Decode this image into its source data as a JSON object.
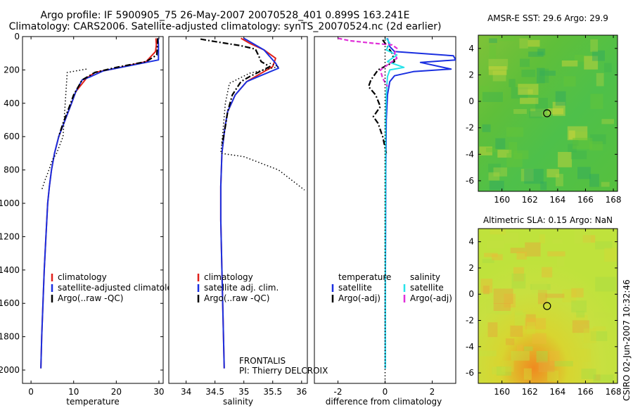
{
  "header": {
    "line1": "Argo profile: IF 5900905_75 26-May-2007 20070528_401 0.899S 163.241E",
    "line2": "Climatology: CARS2006. Satellite-adjusted climatology: synTS_20070524.nc (2d earlier)"
  },
  "colors": {
    "red": "#e0201a",
    "blue": "#1a2fe0",
    "black": "#000000",
    "cyan": "#27e3ea",
    "magenta": "#e030d8"
  },
  "panel_texts": {
    "frontalis": "FRONTALIS",
    "pi": "PI: Thierry DELCROIX",
    "credit": "CSIRO 02-Jun-2007 10:32:46"
  },
  "chart_data": [
    {
      "type": "line",
      "xlabel": "temperature",
      "xlim": [
        -2,
        31
      ],
      "ylim": [
        2080,
        0
      ],
      "xticks": [
        0,
        10,
        20,
        30
      ],
      "yticks": [
        0,
        200,
        400,
        600,
        800,
        1000,
        1200,
        1400,
        1600,
        1800,
        2000
      ],
      "legend": [
        "climatology",
        "satellite-adjusted climatology",
        "Argo(..raw -QC)"
      ],
      "series": [
        {
          "name": "climatology",
          "color": "red",
          "style": "solid",
          "points": [
            [
              29.3,
              10
            ],
            [
              29.4,
              50
            ],
            [
              29.2,
              90
            ],
            [
              27,
              150
            ],
            [
              20,
              190
            ],
            [
              15,
              215
            ],
            [
              13,
              250
            ],
            [
              10.5,
              330
            ],
            [
              9.5,
              400
            ],
            [
              8,
              500
            ],
            [
              6.5,
              600
            ],
            [
              5.5,
              700
            ],
            [
              4.8,
              800
            ],
            [
              4.3,
              900
            ],
            [
              3.9,
              1000
            ],
            [
              3.5,
              1200
            ],
            [
              3.1,
              1400
            ],
            [
              2.8,
              1600
            ],
            [
              2.5,
              1800
            ],
            [
              2.3,
              1990
            ]
          ]
        },
        {
          "name": "satellite-adjusted climatology",
          "color": "blue",
          "style": "solid",
          "points": [
            [
              29.8,
              10
            ],
            [
              29.9,
              50
            ],
            [
              29.9,
              100
            ],
            [
              29.9,
              140
            ],
            [
              24,
              170
            ],
            [
              17,
              205
            ],
            [
              14,
              240
            ],
            [
              12,
              260
            ],
            [
              10.5,
              330
            ],
            [
              9.5,
              400
            ],
            [
              8,
              500
            ],
            [
              6.5,
              600
            ],
            [
              5.5,
              700
            ],
            [
              4.8,
              800
            ],
            [
              4.3,
              900
            ],
            [
              3.9,
              1000
            ],
            [
              3.5,
              1200
            ],
            [
              3.1,
              1400
            ],
            [
              2.8,
              1600
            ],
            [
              2.5,
              1800
            ],
            [
              2.3,
              1990
            ]
          ]
        },
        {
          "name": "Argo(..raw -QC)",
          "color": "black",
          "style": "dashdot",
          "points": [
            [
              29.7,
              10
            ],
            [
              29.7,
              40
            ],
            [
              29.6,
              80
            ],
            [
              29.5,
              110
            ],
            [
              27,
              150
            ],
            [
              20,
              185
            ],
            [
              15,
              215
            ],
            [
              12,
              260
            ],
            [
              10,
              350
            ],
            [
              9,
              420
            ],
            [
              7.5,
              520
            ],
            [
              6.5,
              600
            ]
          ]
        },
        {
          "name": "Argo (raw)",
          "color": "black",
          "style": "dotted",
          "points": [
            [
              13,
              195
            ],
            [
              8.5,
              215
            ],
            [
              7.5,
              600
            ],
            [
              6,
              700
            ],
            [
              5,
              740
            ],
            [
              4.2,
              800
            ],
            [
              3.3,
              860
            ],
            [
              2.5,
              920
            ]
          ]
        }
      ]
    },
    {
      "type": "line",
      "xlabel": "salinity",
      "xlim": [
        33.7,
        36.1
      ],
      "ylim": [
        2080,
        0
      ],
      "xticks": [
        34,
        34.5,
        35,
        35.5,
        36
      ],
      "yticks": [],
      "legend": [
        "climatology",
        "satellite adj. clim.",
        "Argo(..raw -QC)"
      ],
      "series": [
        {
          "name": "climatology",
          "color": "red",
          "style": "solid",
          "points": [
            [
              34.95,
              10
            ],
            [
              35.1,
              40
            ],
            [
              35.35,
              80
            ],
            [
              35.55,
              130
            ],
            [
              35.5,
              180
            ],
            [
              35.2,
              240
            ],
            [
              35.05,
              270
            ],
            [
              34.85,
              350
            ],
            [
              34.72,
              450
            ],
            [
              34.67,
              550
            ],
            [
              34.62,
              700
            ],
            [
              34.6,
              900
            ],
            [
              34.6,
              1100
            ],
            [
              34.62,
              1400
            ],
            [
              34.64,
              1700
            ],
            [
              34.66,
              1990
            ]
          ]
        },
        {
          "name": "satellite adj. clim.",
          "color": "blue",
          "style": "solid",
          "points": [
            [
              35.0,
              10
            ],
            [
              35.15,
              40
            ],
            [
              35.35,
              80
            ],
            [
              35.45,
              120
            ],
            [
              35.55,
              160
            ],
            [
              35.6,
              190
            ],
            [
              35.25,
              240
            ],
            [
              35.05,
              270
            ],
            [
              34.85,
              350
            ],
            [
              34.72,
              450
            ],
            [
              34.67,
              550
            ],
            [
              34.62,
              700
            ],
            [
              34.6,
              900
            ],
            [
              34.6,
              1100
            ],
            [
              34.62,
              1400
            ],
            [
              34.64,
              1700
            ],
            [
              34.66,
              1990
            ]
          ]
        },
        {
          "name": "Argo(..raw -QC)",
          "color": "black",
          "style": "dashdot",
          "points": [
            [
              34.25,
              15
            ],
            [
              34.5,
              30
            ],
            [
              34.95,
              55
            ],
            [
              35.2,
              75
            ],
            [
              35.25,
              110
            ],
            [
              35.3,
              150
            ],
            [
              35.45,
              180
            ],
            [
              35.1,
              240
            ],
            [
              34.95,
              270
            ],
            [
              34.8,
              350
            ],
            [
              34.72,
              450
            ],
            [
              34.67,
              560
            ],
            [
              34.62,
              650
            ]
          ]
        },
        {
          "name": "Argo (raw)",
          "color": "black",
          "style": "dotted",
          "points": [
            [
              35.45,
              160
            ],
            [
              35.6,
              180
            ],
            [
              35.1,
              220
            ],
            [
              34.75,
              280
            ],
            [
              34.68,
              400
            ],
            [
              34.63,
              600
            ],
            [
              34.6,
              700
            ],
            [
              35.0,
              720
            ],
            [
              35.6,
              800
            ],
            [
              36.05,
              920
            ]
          ]
        }
      ]
    },
    {
      "type": "line",
      "xlabel": "difference from climatology",
      "xlim": [
        -3,
        3
      ],
      "ylim": [
        2080,
        0
      ],
      "xticks": [
        -2,
        0,
        2
      ],
      "yticks": [],
      "legend_groups": [
        {
          "title": "temperature",
          "items": [
            "satellite",
            "Argo(-adj)"
          ]
        },
        {
          "title": "salinity",
          "items": [
            "satellite",
            "Argo(-adj)"
          ]
        }
      ],
      "series": [
        {
          "name": "temperature satellite",
          "color": "blue",
          "style": "solid",
          "points": [
            [
              0.1,
              10
            ],
            [
              0.2,
              60
            ],
            [
              0.4,
              90
            ],
            [
              2.9,
              115
            ],
            [
              3,
              140
            ],
            [
              1.5,
              155
            ],
            [
              2.8,
              195
            ],
            [
              1.2,
              210
            ],
            [
              0.4,
              235
            ],
            [
              0.2,
              270
            ],
            [
              0.1,
              350
            ],
            [
              0.05,
              500
            ],
            [
              0.03,
              800
            ],
            [
              0.02,
              1200
            ],
            [
              0.01,
              1600
            ],
            [
              0.01,
              1990
            ]
          ]
        },
        {
          "name": "temperature Argo(-adj)",
          "color": "black",
          "style": "dashdot",
          "points": [
            [
              -0.1,
              20
            ],
            [
              0.1,
              60
            ],
            [
              0.3,
              100
            ],
            [
              0.4,
              150
            ],
            [
              -0.3,
              200
            ],
            [
              -0.6,
              260
            ],
            [
              -0.7,
              300
            ],
            [
              -0.4,
              350
            ],
            [
              -0.2,
              420
            ],
            [
              -0.5,
              480
            ],
            [
              -0.3,
              520
            ],
            [
              -0.1,
              600
            ],
            [
              0.05,
              700
            ]
          ]
        },
        {
          "name": "salinity satellite",
          "color": "cyan",
          "style": "solid",
          "points": [
            [
              0.05,
              10
            ],
            [
              0.2,
              40
            ],
            [
              0.05,
              80
            ],
            [
              0.5,
              110
            ],
            [
              0.1,
              150
            ],
            [
              0.8,
              185
            ],
            [
              0.2,
              200
            ],
            [
              0.1,
              240
            ],
            [
              0.05,
              350
            ],
            [
              0.02,
              500
            ],
            [
              0.02,
              800
            ],
            [
              0.01,
              1200
            ],
            [
              0.01,
              1600
            ],
            [
              0.01,
              1990
            ]
          ]
        },
        {
          "name": "salinity Argo(-adj)",
          "color": "magenta",
          "style": "dashed",
          "points": [
            [
              -2.0,
              10
            ],
            [
              -1.5,
              25
            ],
            [
              -0.5,
              40
            ],
            [
              0.3,
              50
            ],
            [
              0.5,
              70
            ],
            [
              0.4,
              100
            ],
            [
              0.5,
              130
            ],
            [
              0.3,
              150
            ],
            [
              -0.2,
              200
            ],
            [
              -0.1,
              250
            ],
            [
              0.1,
              300
            ]
          ]
        },
        {
          "name": "zero",
          "color": "black",
          "style": "dotted",
          "points": [
            [
              0,
              0
            ],
            [
              0,
              2080
            ]
          ]
        }
      ]
    },
    {
      "type": "heatmap",
      "title": "AMSR-E SST: 29.6 Argo: 29.9",
      "xlim": [
        158.3,
        168.3
      ],
      "ylim": [
        -6.8,
        5
      ],
      "xticks": [
        160,
        162,
        164,
        166,
        168
      ],
      "yticks": [
        -6,
        -4,
        -2,
        0,
        2,
        4
      ],
      "marker": {
        "x": 163.24,
        "y": -0.9
      },
      "palette": "green-yellow"
    },
    {
      "type": "heatmap",
      "title": "Altimetric SLA: 0.15 Argo: NaN",
      "xlim": [
        158.3,
        168.3
      ],
      "ylim": [
        -6.8,
        5
      ],
      "xticks": [
        160,
        162,
        164,
        166,
        168
      ],
      "yticks": [
        -6,
        -4,
        -2,
        0,
        2,
        4
      ],
      "marker": {
        "x": 163.24,
        "y": -0.9
      },
      "palette": "yellow-orange"
    }
  ]
}
